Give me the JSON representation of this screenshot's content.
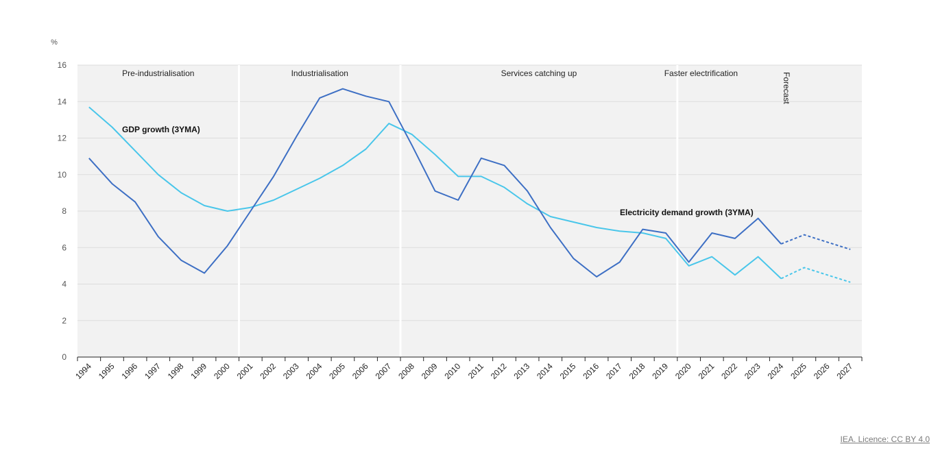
{
  "chart_data": {
    "type": "line",
    "y_unit": "%",
    "ylim": [
      0,
      16
    ],
    "y_ticks": [
      0,
      2,
      4,
      6,
      8,
      10,
      12,
      14,
      16
    ],
    "grid": true,
    "forecast_from_index": 30,
    "x": [
      "1994",
      "1995",
      "1996",
      "1997",
      "1998",
      "1999",
      "2000",
      "2001",
      "2002",
      "2003",
      "2004",
      "2005",
      "2006",
      "2007",
      "2008",
      "2009",
      "2010",
      "2011",
      "2012",
      "2013",
      "2014",
      "2015",
      "2016",
      "2017",
      "2018",
      "2019",
      "2020",
      "2021",
      "2022",
      "2023",
      "2024",
      "2025",
      "2026",
      "2027"
    ],
    "series": [
      {
        "label": "GDP growth (3YMA)",
        "color": "#49c6ea",
        "values": [
          13.7,
          12.6,
          11.3,
          10.0,
          9.0,
          8.3,
          8.0,
          8.2,
          8.6,
          9.2,
          9.8,
          10.5,
          11.4,
          12.8,
          12.2,
          11.1,
          9.9,
          9.9,
          9.3,
          8.4,
          7.7,
          7.4,
          7.1,
          6.9,
          6.8,
          6.5,
          5.0,
          5.5,
          4.5,
          5.5,
          4.3,
          4.9,
          4.5,
          4.1
        ]
      },
      {
        "label": "Electricity demand growth (3YMA)",
        "color": "#3d6fc4",
        "values": [
          10.9,
          9.5,
          8.5,
          6.6,
          5.3,
          4.6,
          6.1,
          8.0,
          9.9,
          12.1,
          14.2,
          14.7,
          14.3,
          14.0,
          11.6,
          9.1,
          8.6,
          10.9,
          10.5,
          9.1,
          7.1,
          5.4,
          4.4,
          5.2,
          7.0,
          6.8,
          5.2,
          6.8,
          6.5,
          7.6,
          6.2,
          6.7,
          6.3,
          5.9
        ]
      }
    ],
    "phases": [
      {
        "label": "Pre-industrialisation",
        "start_index": 0,
        "end_index": 7
      },
      {
        "label": "Industrialisation",
        "start_index": 7,
        "end_index": 14
      },
      {
        "label": "Services catching up",
        "start_index": 14,
        "end_index": 26
      },
      {
        "label": "Faster electrification",
        "start_index": 26,
        "end_index": 34
      }
    ],
    "forecast_label": "Forecast"
  },
  "footer": {
    "credit": "IEA. Licence: CC BY 4.0"
  }
}
